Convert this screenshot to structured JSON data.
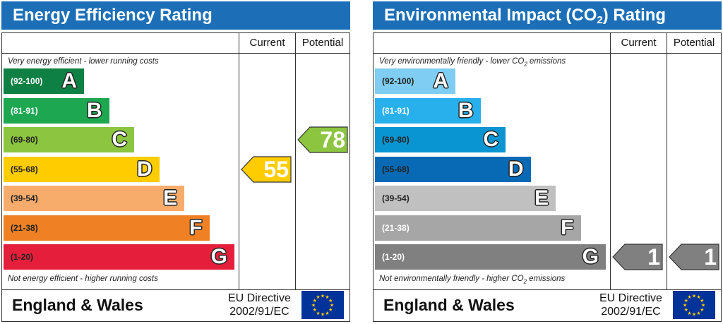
{
  "energy": {
    "title": "Energy Efficiency Rating",
    "col_current": "Current",
    "col_potential": "Potential",
    "top_note": "Very energy efficient - lower running costs",
    "bottom_note": "Not energy efficient - higher running costs",
    "bands": [
      {
        "range": "(92-100)",
        "letter": "A",
        "color": "#0f8043",
        "text_color": "#ffffff"
      },
      {
        "range": "(81-91)",
        "letter": "B",
        "color": "#1ea751",
        "text_color": "#ffffff"
      },
      {
        "range": "(69-80)",
        "letter": "C",
        "color": "#8cc540",
        "text_color": "#222222"
      },
      {
        "range": "(55-68)",
        "letter": "D",
        "color": "#ffcc00",
        "text_color": "#222222"
      },
      {
        "range": "(39-54)",
        "letter": "E",
        "color": "#f7ac6c",
        "text_color": "#222222"
      },
      {
        "range": "(21-38)",
        "letter": "F",
        "color": "#ef8024",
        "text_color": "#222222"
      },
      {
        "range": "(1-20)",
        "letter": "G",
        "color": "#e51f3b",
        "text_color": "#222222"
      }
    ],
    "current": {
      "value": "55",
      "band": "D",
      "color": "#ffcc00"
    },
    "potential": {
      "value": "78",
      "band": "C",
      "color": "#8cc540"
    },
    "footer_name": "England & Wales",
    "footer_directive_line1": "EU Directive",
    "footer_directive_line2": "2002/91/EC"
  },
  "environment": {
    "title_prefix": "Environmental Impact (CO",
    "title_sub": "2",
    "title_suffix": ") Rating",
    "col_current": "Current",
    "col_potential": "Potential",
    "top_note_prefix": "Very environmentally friendly - lower CO",
    "top_note_sub": "2",
    "top_note_suffix": " emissions",
    "bottom_note_prefix": "Not environmentally friendly - higher CO",
    "bottom_note_sub": "2",
    "bottom_note_suffix": " emissions",
    "bands": [
      {
        "range": "(92-100)",
        "letter": "A",
        "color": "#7fcdf2",
        "text_color": "#222222"
      },
      {
        "range": "(81-91)",
        "letter": "B",
        "color": "#27b0ec",
        "text_color": "#ffffff"
      },
      {
        "range": "(69-80)",
        "letter": "C",
        "color": "#0995d2",
        "text_color": "#222222"
      },
      {
        "range": "(55-68)",
        "letter": "D",
        "color": "#086ab5",
        "text_color": "#222222"
      },
      {
        "range": "(39-54)",
        "letter": "E",
        "color": "#c0c0c0",
        "text_color": "#222222"
      },
      {
        "range": "(21-38)",
        "letter": "F",
        "color": "#a6a6a6",
        "text_color": "#ffffff"
      },
      {
        "range": "(1-20)",
        "letter": "G",
        "color": "#808080",
        "text_color": "#ffffff"
      }
    ],
    "current": {
      "value": "1",
      "band": "G",
      "color": "#808080"
    },
    "potential": {
      "value": "1",
      "band": "G",
      "color": "#808080"
    },
    "footer_name": "England & Wales",
    "footer_directive_line1": "EU Directive",
    "footer_directive_line2": "2002/91/EC"
  }
}
